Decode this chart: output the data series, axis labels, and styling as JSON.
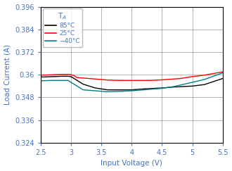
{
  "title": "",
  "xlabel": "Input Voltage (V)",
  "ylabel": "Load Current (A)",
  "xlim": [
    2.5,
    5.5
  ],
  "ylim": [
    0.324,
    0.396
  ],
  "xticks": [
    2.5,
    3.0,
    3.5,
    4.0,
    4.5,
    5.0,
    5.5
  ],
  "yticks": [
    0.324,
    0.336,
    0.348,
    0.36,
    0.372,
    0.384,
    0.396
  ],
  "legend_title": "T",
  "legend_labels": [
    "85°C",
    "25°C",
    "−40°C"
  ],
  "line_colors": [
    "#000000",
    "#ff0000",
    "#008080"
  ],
  "x_85": [
    2.5,
    2.7,
    2.85,
    2.95,
    3.0,
    3.1,
    3.2,
    3.4,
    3.6,
    3.8,
    4.0,
    4.2,
    4.5,
    4.7,
    5.0,
    5.2,
    5.5
  ],
  "y_85": [
    0.3588,
    0.359,
    0.3592,
    0.3592,
    0.359,
    0.357,
    0.355,
    0.353,
    0.352,
    0.352,
    0.352,
    0.3525,
    0.353,
    0.3535,
    0.354,
    0.3548,
    0.358
  ],
  "x_25": [
    2.5,
    2.7,
    2.85,
    2.95,
    3.0,
    3.05,
    3.1,
    3.3,
    3.6,
    3.8,
    4.0,
    4.3,
    4.5,
    4.8,
    5.0,
    5.2,
    5.5
  ],
  "y_25": [
    0.3598,
    0.36,
    0.3602,
    0.3602,
    0.36,
    0.3595,
    0.3585,
    0.358,
    0.3572,
    0.357,
    0.357,
    0.357,
    0.3573,
    0.358,
    0.359,
    0.3598,
    0.3615
  ],
  "x_n40": [
    2.5,
    2.7,
    2.85,
    2.95,
    3.0,
    3.1,
    3.2,
    3.4,
    3.6,
    3.8,
    4.0,
    4.2,
    4.5,
    4.7,
    5.0,
    5.2,
    5.5
  ],
  "y_n40": [
    0.3568,
    0.357,
    0.357,
    0.357,
    0.356,
    0.354,
    0.352,
    0.3515,
    0.351,
    0.3512,
    0.3515,
    0.352,
    0.3528,
    0.3538,
    0.356,
    0.3575,
    0.361
  ],
  "grid_color": "#000000",
  "bg_color": "#ffffff",
  "label_color": "#4472c4",
  "tick_color": "#4472c4",
  "legend_title_color": "#4472c4",
  "legend_label_color": "#4472c4",
  "spine_color": "#000000"
}
